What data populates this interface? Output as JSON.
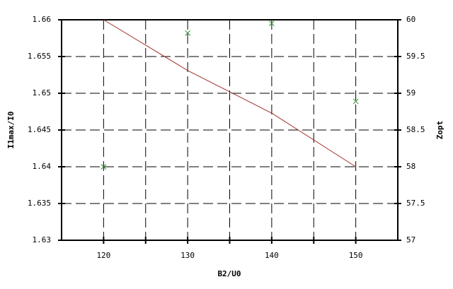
{
  "chart_data": {
    "type": "line",
    "xlabel": "B2/U0",
    "ylabel": "I1max/I0",
    "y2label": "Zopt",
    "x": [
      120,
      130,
      140,
      150
    ],
    "xlim": [
      115,
      155
    ],
    "xticks": [
      120,
      130,
      140,
      150
    ],
    "x_minor_ticks": [
      125,
      135,
      145
    ],
    "ylim": [
      1.63,
      1.66
    ],
    "yticks": [
      1.63,
      1.635,
      1.64,
      1.645,
      1.65,
      1.655,
      1.66
    ],
    "y2lim": [
      57,
      60
    ],
    "y2ticks": [
      57,
      57.5,
      58,
      58.5,
      59,
      59.5,
      60
    ],
    "grid": true,
    "series": [
      {
        "color": "#a0302a",
        "marker": "none",
        "values": [
          1.66,
          1.6531,
          1.6473,
          1.64
        ]
      },
      {
        "color": "#2e8b2e",
        "marker": "x",
        "axis": "y2",
        "values": [
          58.0,
          59.82,
          59.95,
          58.89
        ]
      }
    ]
  }
}
